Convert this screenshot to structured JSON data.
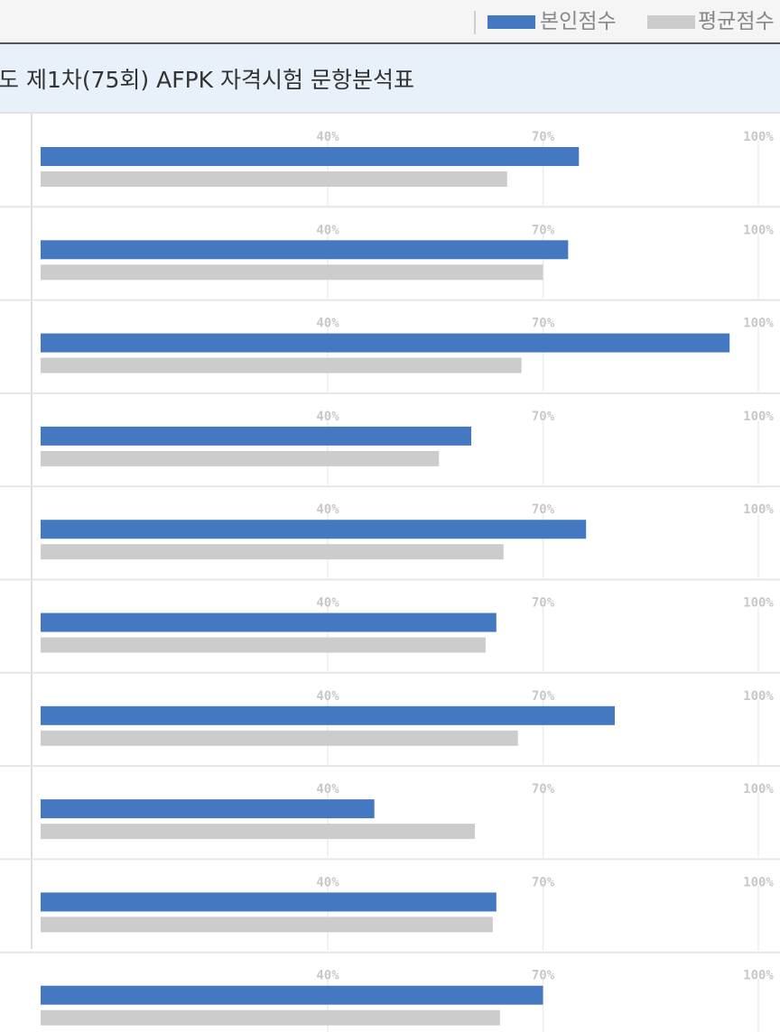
{
  "legend": {
    "mine_label": "본인점수",
    "avg_label": "평균점수",
    "mine_color": "#4479c2",
    "avg_color": "#cccccc"
  },
  "title": "도 제1차(75회) AFPK 자격시험 문항분석표",
  "chart_data": {
    "type": "bar",
    "orientation": "horizontal",
    "tick_labels": [
      "40%",
      "70%",
      "100%"
    ],
    "xlim": [
      0,
      100
    ],
    "grid": true,
    "series": [
      {
        "name": "본인점수",
        "color": "#4479c2",
        "values": [
          75,
          73.5,
          96,
          60,
          76,
          63.5,
          80,
          46.5,
          63.5,
          70
        ]
      },
      {
        "name": "평균점수",
        "color": "#cccccc",
        "values": [
          65,
          70,
          67,
          55.5,
          64.5,
          62,
          66.5,
          60.5,
          63,
          64
        ]
      }
    ]
  }
}
